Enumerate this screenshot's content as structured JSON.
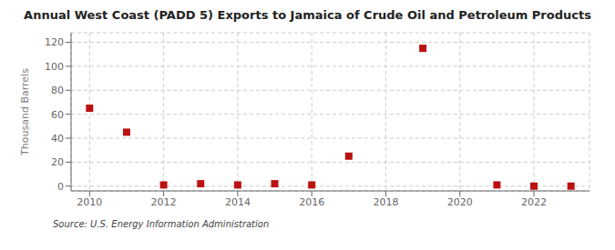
{
  "chart_data": {
    "type": "scatter",
    "title": "Annual West Coast (PADD 5) Exports to Jamaica of Crude Oil and Petroleum Products",
    "y_label": "Thousand Barrels",
    "source": "Source: U.S. Energy Information Administration",
    "x": [
      2010,
      2011,
      2012,
      2013,
      2014,
      2015,
      2016,
      2017,
      2019,
      2021,
      2022,
      2023
    ],
    "values": [
      65,
      45,
      1,
      2,
      1,
      2,
      1,
      25,
      115,
      1,
      0,
      0
    ],
    "color": "#bb1111",
    "marker": "square",
    "xlim": [
      2009.5,
      2023.5
    ],
    "ylim": [
      -4,
      128
    ],
    "xticks": [
      2010,
      2012,
      2014,
      2016,
      2018,
      2020,
      2022
    ],
    "yticks": [
      0,
      20,
      40,
      60,
      80,
      100,
      120
    ],
    "grid": true
  }
}
